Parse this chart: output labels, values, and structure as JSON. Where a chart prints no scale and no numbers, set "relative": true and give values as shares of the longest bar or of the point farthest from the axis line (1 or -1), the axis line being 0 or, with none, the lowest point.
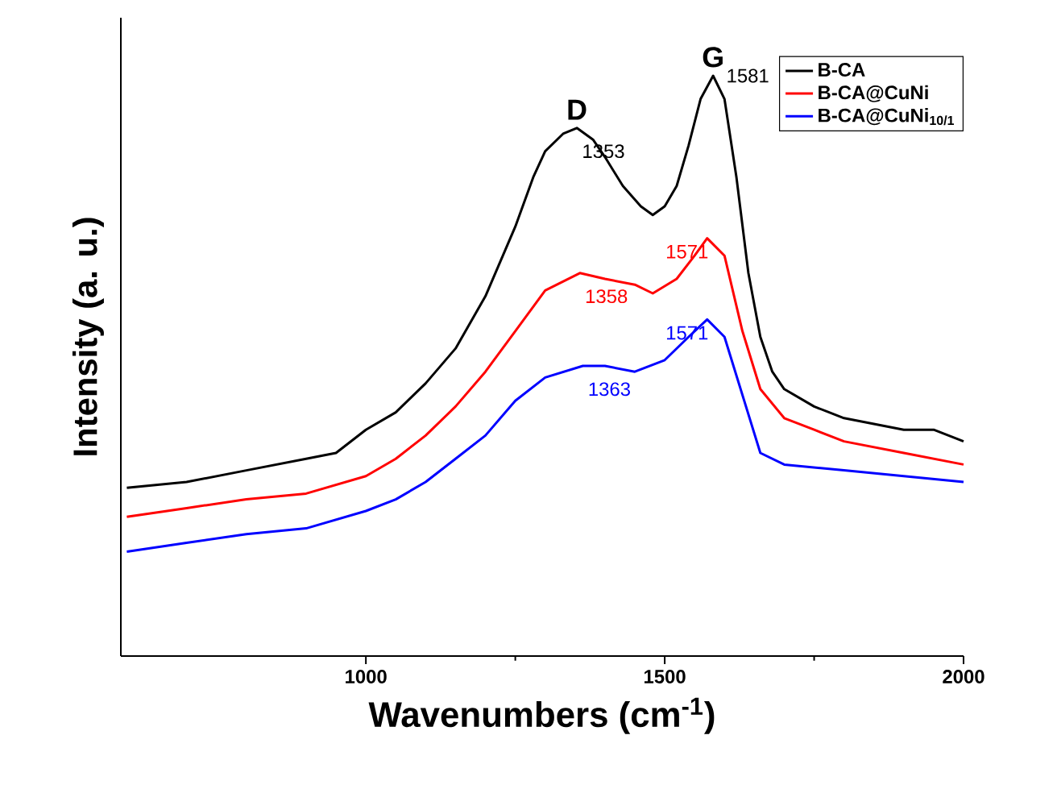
{
  "chart_data": {
    "type": "line",
    "relative": true,
    "xlabel": "Wavenumbers (cm$^{-1}$)",
    "ylabel": "Intensity (a. u.)",
    "xlim": [
      590,
      2000
    ],
    "xticks": [
      1000,
      1500,
      2000
    ],
    "legend": "top right",
    "series": [
      {
        "name": "B-CA",
        "color": "#000000",
        "x": [
          600,
          700,
          800,
          900,
          950,
          1000,
          1050,
          1100,
          1150,
          1200,
          1250,
          1280,
          1300,
          1330,
          1353,
          1380,
          1400,
          1430,
          1460,
          1480,
          1500,
          1520,
          1540,
          1560,
          1581,
          1600,
          1620,
          1640,
          1660,
          1680,
          1700,
          1750,
          1800,
          1850,
          1900,
          1950,
          2000
        ],
        "values": [
          0.29,
          0.3,
          0.32,
          0.34,
          0.35,
          0.39,
          0.42,
          0.47,
          0.53,
          0.62,
          0.74,
          0.825,
          0.87,
          0.9,
          0.91,
          0.89,
          0.86,
          0.81,
          0.775,
          0.76,
          0.775,
          0.81,
          0.88,
          0.96,
          1.0,
          0.96,
          0.825,
          0.66,
          0.55,
          0.49,
          0.46,
          0.43,
          0.41,
          0.4,
          0.39,
          0.39,
          0.37
        ]
      },
      {
        "name": "B-CA@CuNi",
        "color": "#ff0000",
        "x": [
          600,
          700,
          800,
          900,
          1000,
          1050,
          1100,
          1150,
          1200,
          1250,
          1300,
          1358,
          1400,
          1450,
          1480,
          1520,
          1550,
          1571,
          1600,
          1630,
          1660,
          1700,
          1750,
          1800,
          1900,
          2000
        ],
        "values": [
          0.24,
          0.255,
          0.27,
          0.28,
          0.31,
          0.34,
          0.38,
          0.43,
          0.49,
          0.56,
          0.63,
          0.66,
          0.65,
          0.64,
          0.625,
          0.65,
          0.69,
          0.72,
          0.69,
          0.56,
          0.46,
          0.41,
          0.39,
          0.37,
          0.35,
          0.33
        ]
      },
      {
        "name": "B-CA@CuNi$_{10/1}$",
        "color": "#0000ff",
        "x": [
          600,
          700,
          800,
          900,
          1000,
          1050,
          1100,
          1150,
          1200,
          1250,
          1300,
          1363,
          1400,
          1450,
          1500,
          1540,
          1571,
          1600,
          1630,
          1660,
          1700,
          1800,
          1900,
          2000
        ],
        "values": [
          0.18,
          0.195,
          0.21,
          0.22,
          0.25,
          0.27,
          0.3,
          0.34,
          0.38,
          0.44,
          0.48,
          0.5,
          0.5,
          0.49,
          0.51,
          0.55,
          0.58,
          0.55,
          0.45,
          0.35,
          0.33,
          0.32,
          0.31,
          0.3
        ]
      }
    ],
    "annotations": [
      {
        "text": "D",
        "x": 1353,
        "y": 0.91
      },
      {
        "text": "G",
        "x": 1581,
        "y": 1.0
      },
      {
        "text": "1353",
        "x": 1353,
        "y": 0.91
      },
      {
        "text": "1581",
        "x": 1581,
        "y": 1.0
      },
      {
        "text": "1358",
        "x": 1358,
        "y": 0.66
      },
      {
        "text": "1571",
        "x": 1571,
        "y": 0.72
      },
      {
        "text": "1363",
        "x": 1363,
        "y": 0.5
      },
      {
        "text": "1571",
        "x": 1571,
        "y": 0.58
      }
    ]
  }
}
